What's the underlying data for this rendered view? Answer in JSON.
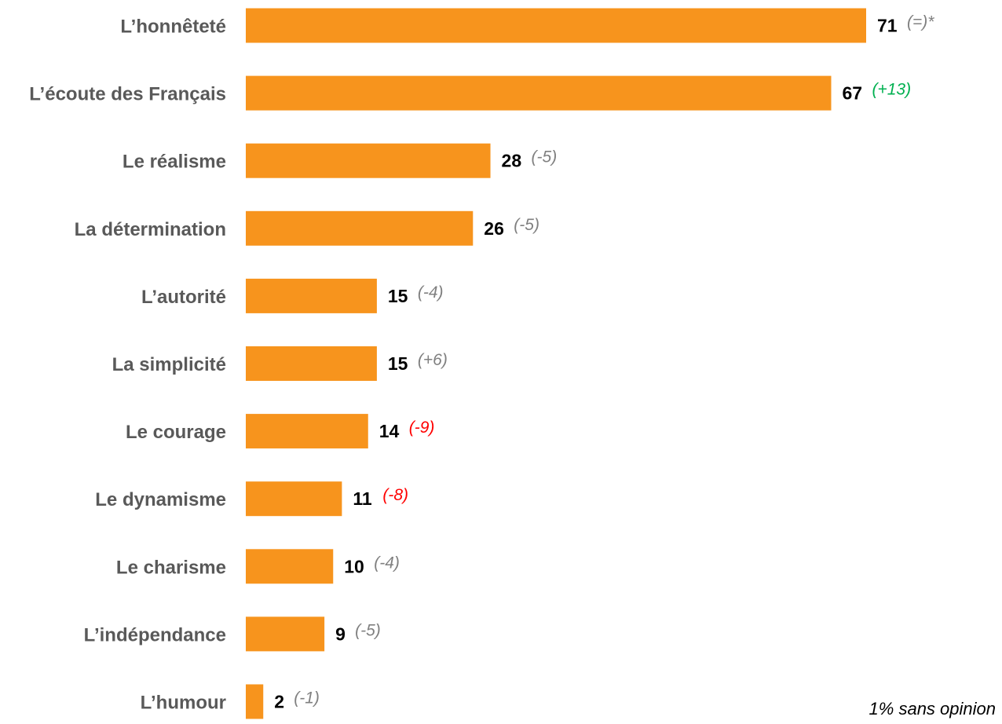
{
  "chart_data": {
    "type": "bar",
    "orientation": "horizontal",
    "categories": [
      "L’honnêteté",
      "L’écoute des Français",
      "Le réalisme",
      "La détermination",
      "L’autorité",
      "La simplicité",
      "Le courage",
      "Le dynamisme",
      "Le charisme",
      "L’indépendance",
      "L’humour"
    ],
    "values": [
      71,
      67,
      28,
      26,
      15,
      15,
      14,
      11,
      10,
      9,
      2
    ],
    "changes": [
      "(=)*",
      "(+13)",
      "(-5)",
      "(-5)",
      "(-4)",
      "(+6)",
      "(-9)",
      "(-8)",
      "(-4)",
      "(-5)",
      "(-1)"
    ],
    "change_colors": [
      "#808080",
      "#00b050",
      "#808080",
      "#808080",
      "#808080",
      "#808080",
      "#ff0000",
      "#ff0000",
      "#808080",
      "#808080",
      "#808080"
    ],
    "bar_color": "#f7941d",
    "xlim": [
      0,
      71
    ],
    "grid": false,
    "title": "",
    "xlabel": "",
    "ylabel": ""
  },
  "footnote": "1% sans opinion"
}
